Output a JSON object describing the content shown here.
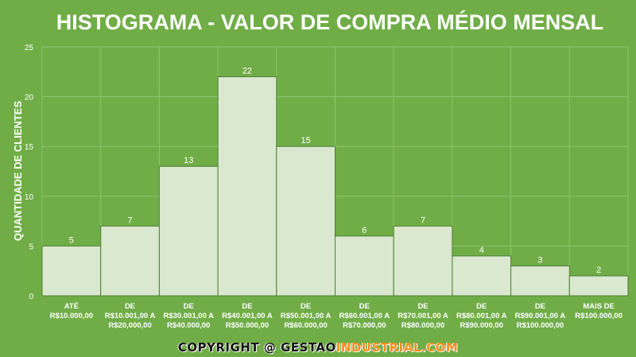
{
  "chart_data": {
    "type": "bar",
    "title": "HISTOGRAMA - VALOR DE COMPRA MÉDIO MENSAL",
    "ylabel": "QUANTIDADE DE CLIENTES",
    "xlabel": "",
    "ylim": [
      0,
      25
    ],
    "yticks": [
      "0",
      "5",
      "10",
      "15",
      "20",
      "25"
    ],
    "grid": true,
    "categories": [
      [
        "ATÉ",
        "R$10.000,00"
      ],
      [
        "DE",
        "R$10.001,00 A",
        "R$20,000,00"
      ],
      [
        "DE",
        "R$30.001,00 A",
        "R$40.000,00"
      ],
      [
        "DE",
        "R$40.001,00 A",
        "R$50.000,00"
      ],
      [
        "DE",
        "R$50.001,00 A",
        "R$60.000,00"
      ],
      [
        "DE",
        "R$60.001,00 A",
        "R$70.000,00"
      ],
      [
        "DE",
        "R$70.001,00 A",
        "R$80.000,00"
      ],
      [
        "DE",
        "R$80.001,00 A",
        "R$90.000,00"
      ],
      [
        "DE",
        "R$90.001,00 A",
        "R$100.000,00"
      ],
      [
        "MAIS DE",
        "R$100.000,00"
      ]
    ],
    "values": [
      5,
      7,
      13,
      22,
      15,
      6,
      7,
      4,
      3,
      2
    ],
    "data_labels": [
      "5",
      "7",
      "13",
      "22",
      "15",
      "6",
      "7",
      "4",
      "3",
      "2"
    ]
  },
  "colors": {
    "background": "#70ad47",
    "bar_fill": "#dae8cf",
    "accent": "#ff8c1a"
  },
  "footer": {
    "prefix": "COPYRIGHT @ ",
    "brand_part1": "GESTAO",
    "brand_part2": "INDUSTRIAL.COM"
  }
}
